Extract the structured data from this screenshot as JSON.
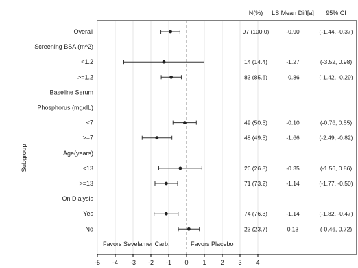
{
  "chart_data": {
    "type": "forest",
    "ylabel": "Subgroup",
    "xlim": [
      -5,
      4
    ],
    "xticks": [
      -5,
      -4,
      -3,
      -2,
      -1,
      0,
      1,
      2,
      3,
      4
    ],
    "reference_line": 0,
    "favors_left": "Favors Sevelamer Carb.",
    "favors_right": "Favors Placebo",
    "columns": [
      "N(%)",
      "LS Mean Diff[a]",
      "95% CI"
    ],
    "rows": [
      {
        "label": "Overall",
        "n": "97 (100.0)",
        "diff_text": "-0.90",
        "ci_text": "(-1.44, -0.37)",
        "estimate": -0.9,
        "lower": -1.44,
        "upper": -0.37
      },
      {
        "label": "Screening BSA (m^2)",
        "header": true
      },
      {
        "label": "<1.2",
        "n": "14 (14.4)",
        "diff_text": "-1.27",
        "ci_text": "(-3.52, 0.98)",
        "estimate": -1.27,
        "lower": -3.52,
        "upper": 0.98
      },
      {
        "label": ">=1.2",
        "n": "83 (85.6)",
        "diff_text": "-0.86",
        "ci_text": "(-1.42, -0.29)",
        "estimate": -0.86,
        "lower": -1.42,
        "upper": -0.29
      },
      {
        "label": "Baseline Serum",
        "header": true
      },
      {
        "label": "Phosphorus (mg/dL)",
        "header": true
      },
      {
        "label": "<7",
        "n": "49 (50.5)",
        "diff_text": "-0.10",
        "ci_text": "(-0.76, 0.55)",
        "estimate": -0.1,
        "lower": -0.76,
        "upper": 0.55
      },
      {
        "label": ">=7",
        "n": "48 (49.5)",
        "diff_text": "-1.66",
        "ci_text": "(-2.49, -0.82)",
        "estimate": -1.66,
        "lower": -2.49,
        "upper": -0.82
      },
      {
        "label": "Age(years)",
        "header": true
      },
      {
        "label": "<13",
        "n": "26 (26.8)",
        "diff_text": "-0.35",
        "ci_text": "(-1.56, 0.86)",
        "estimate": -0.35,
        "lower": -1.56,
        "upper": 0.86
      },
      {
        "label": ">=13",
        "n": "71 (73.2)",
        "diff_text": "-1.14",
        "ci_text": "(-1.77, -0.50)",
        "estimate": -1.14,
        "lower": -1.77,
        "upper": -0.5
      },
      {
        "label": "On Dialysis",
        "header": true
      },
      {
        "label": "Yes",
        "n": "74 (76.3)",
        "diff_text": "-1.14",
        "ci_text": "(-1.82, -0.47)",
        "estimate": -1.14,
        "lower": -1.82,
        "upper": -0.47
      },
      {
        "label": "No",
        "n": "23 (23.7)",
        "diff_text": "0.13",
        "ci_text": "(-0.46, 0.72)",
        "estimate": 0.13,
        "lower": -0.46,
        "upper": 0.72
      }
    ]
  }
}
